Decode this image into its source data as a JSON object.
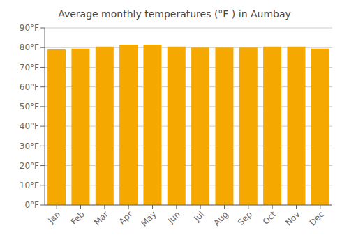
{
  "chart_data": {
    "type": "bar",
    "title": "Average monthly temperatures (°F ) in Aumbay",
    "categories": [
      "Jan",
      "Feb",
      "Mar",
      "Apr",
      "May",
      "Jun",
      "Jul",
      "Aug",
      "Sep",
      "Oct",
      "Nov",
      "Dec"
    ],
    "values": [
      79,
      79.5,
      80.5,
      81.5,
      81.5,
      80.5,
      80,
      80,
      80,
      80.5,
      80.5,
      79.5
    ],
    "color": "#F5A800",
    "ylim": [
      0,
      90
    ],
    "yticks": [
      {
        "value": 0,
        "label": "0°F"
      },
      {
        "value": 10,
        "label": "10°F"
      },
      {
        "value": 20,
        "label": "20°F"
      },
      {
        "value": 30,
        "label": "30°F"
      },
      {
        "value": 40,
        "label": "40°F"
      },
      {
        "value": 50,
        "label": "50°F"
      },
      {
        "value": 60,
        "label": "60°F"
      },
      {
        "value": 70,
        "label": "70°F"
      },
      {
        "value": 80,
        "label": "80°F"
      },
      {
        "value": 90,
        "label": "90°F"
      }
    ],
    "grid": true
  }
}
